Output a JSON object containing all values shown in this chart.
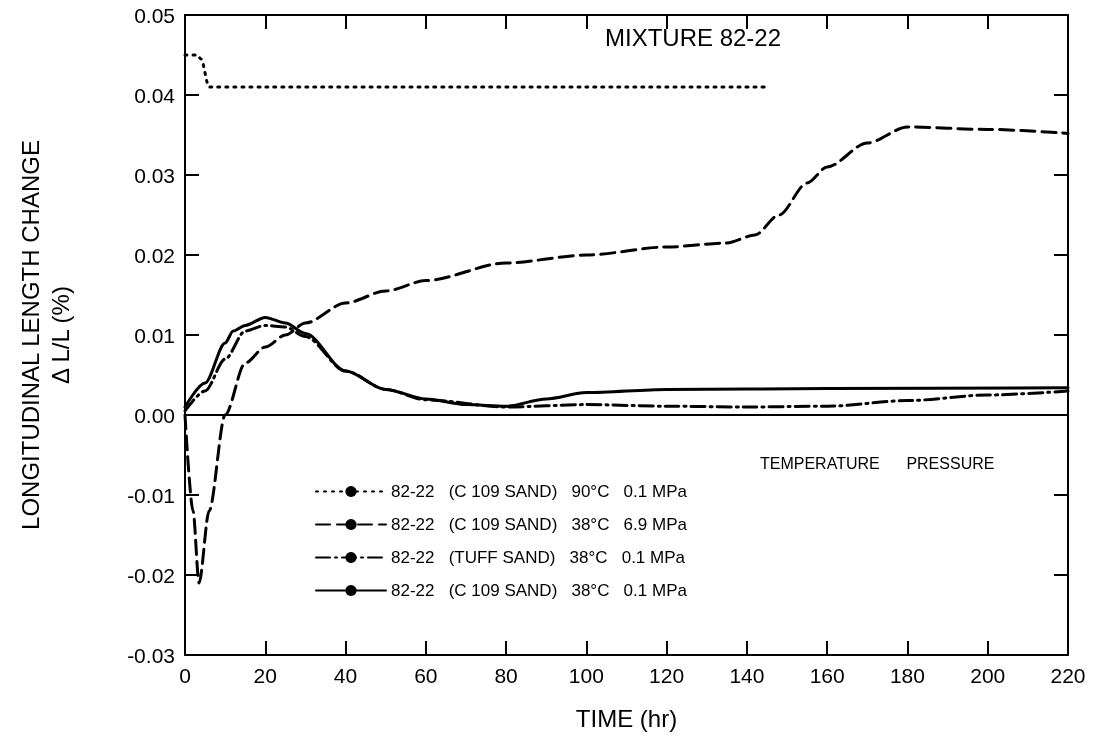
{
  "chart_data": {
    "type": "line",
    "title": "MIXTURE 82-22",
    "xlabel": "TIME (hr)",
    "ylabel": "LONGITUDINAL LENGTH CHANGE\nΔ L/L (%)",
    "legend_title": "TEMPERATURE      PRESSURE",
    "legend": "bottom",
    "grid": false,
    "marker": "none",
    "xlim": [
      0,
      220
    ],
    "xticks": [
      0,
      20,
      40,
      60,
      80,
      100,
      120,
      140,
      160,
      180,
      200,
      220
    ],
    "ylim": [
      -0.03,
      0.05
    ],
    "yticks": [
      {
        "value": -0.03,
        "label": "-0.03"
      },
      {
        "value": -0.02,
        "label": "-0.02"
      },
      {
        "value": -0.01,
        "label": "-0.01"
      },
      {
        "value": 0,
        "label": "0.00"
      },
      {
        "value": 0.01,
        "label": "0.01"
      },
      {
        "value": 0.02,
        "label": "0.02"
      },
      {
        "value": 0.03,
        "label": "0.03"
      },
      {
        "value": 0.04,
        "label": "0.04"
      },
      {
        "value": 0.05,
        "label": "0.05"
      }
    ],
    "ref_lines": [
      {
        "axis": "y",
        "value": 0,
        "label": null,
        "color": "#000000",
        "line_style": "solid"
      }
    ],
    "series": [
      {
        "name": "82-22   (C 109 SAND)   90°C   0.1 MPa",
        "color": "#000000",
        "line_style": "dotted",
        "x": [
          0,
          3,
          4,
          6,
          20,
          60,
          100,
          145
        ],
        "values": [
          0.045,
          0.045,
          0.0445,
          0.041,
          0.041,
          0.041,
          0.041,
          0.041
        ]
      },
      {
        "name": "82-22   (C 109 SAND)   38°C   6.9 MPa",
        "color": "#000000",
        "line_style": "dashed",
        "x": [
          0,
          2,
          3.5,
          6,
          10,
          15,
          20,
          25,
          30,
          40,
          50,
          60,
          80,
          100,
          120,
          135,
          142,
          148,
          155,
          160,
          170,
          180,
          200,
          220
        ],
        "values": [
          0,
          -0.012,
          -0.021,
          -0.012,
          0,
          0.0065,
          0.0085,
          0.01,
          0.0115,
          0.014,
          0.0155,
          0.0168,
          0.019,
          0.02,
          0.021,
          0.0215,
          0.0225,
          0.025,
          0.029,
          0.031,
          0.034,
          0.036,
          0.0357,
          0.0352
        ]
      },
      {
        "name": "82-22   (TUFF SAND)   38°C   0.1 MPa",
        "color": "#000000",
        "line_style": "dashdot",
        "x": [
          0,
          5,
          10,
          15,
          20,
          25,
          30,
          40,
          50,
          60,
          80,
          100,
          120,
          140,
          160,
          180,
          200,
          220
        ],
        "values": [
          0.0005,
          0.003,
          0.007,
          0.0105,
          0.0112,
          0.011,
          0.0098,
          0.0055,
          0.0032,
          0.0019,
          0.001,
          0.0013,
          0.0011,
          0.001,
          0.0011,
          0.0018,
          0.0025,
          0.003
        ]
      },
      {
        "name": "82-22   (C 109 SAND)   38°C   0.1 MPa",
        "color": "#000000",
        "line_style": "solid",
        "x": [
          0,
          5,
          10,
          12,
          15,
          20,
          25,
          30,
          40,
          50,
          60,
          70,
          80,
          90,
          100,
          120,
          160,
          220
        ],
        "values": [
          0.001,
          0.004,
          0.009,
          0.0105,
          0.0112,
          0.0122,
          0.0115,
          0.0102,
          0.0055,
          0.0032,
          0.002,
          0.0013,
          0.0011,
          0.002,
          0.0028,
          0.0032,
          0.0033,
          0.0034
        ]
      }
    ]
  }
}
